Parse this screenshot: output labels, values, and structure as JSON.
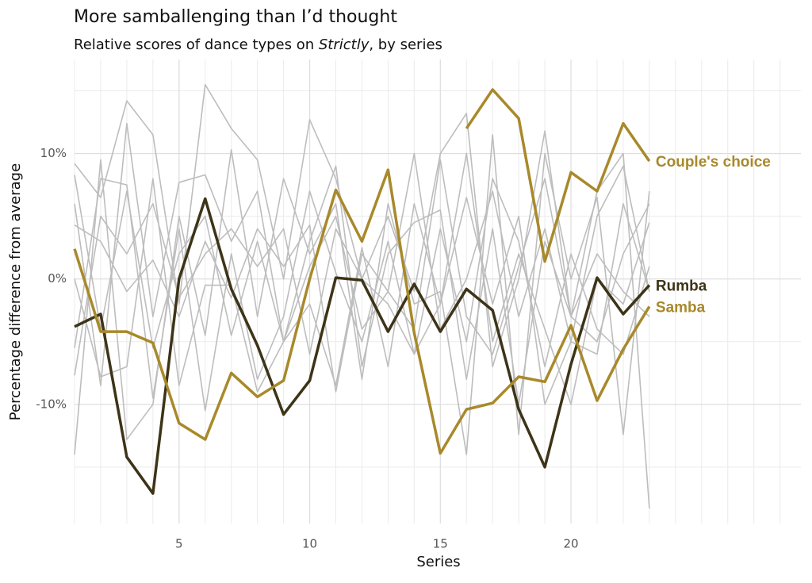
{
  "chart_data": {
    "type": "line",
    "title": "More samballenging than I’d thought",
    "subtitle": [
      "Relative scores of dance types on ",
      "Strictly",
      ", by series"
    ],
    "x_label": "Series",
    "y_label": "Percentage difference from average",
    "x": [
      1,
      2,
      3,
      4,
      5,
      6,
      7,
      8,
      9,
      10,
      11,
      12,
      13,
      14,
      15,
      16,
      17,
      18,
      19,
      20,
      21,
      22,
      23
    ],
    "xlim": [
      1,
      28.8
    ],
    "xticks": [
      5,
      10,
      15,
      20
    ],
    "ylim": [
      -19.5,
      17.5
    ],
    "yticks": [
      {
        "value": -10,
        "label": "-10%"
      },
      {
        "value": 0,
        "label": "0%"
      },
      {
        "value": 10,
        "label": "10%"
      }
    ],
    "grid": true,
    "series": [
      {
        "color": "#bdbdbd",
        "values": [
          9.2,
          6.5,
          14.2,
          11.5,
          -2,
          15.5,
          12,
          9.5,
          0,
          12.7,
          8,
          0,
          5,
          -1,
          10,
          13.2,
          -7,
          0,
          11.8,
          -3,
          7,
          10,
          -18.3
        ]
      },
      {
        "color": "#bdbdbd",
        "values": [
          -14,
          9.5,
          -12.8,
          -10,
          5,
          -4.5,
          10.3,
          -3,
          8,
          2,
          6,
          -8,
          6,
          -2,
          -1,
          -14,
          11.5,
          -12.4,
          10,
          0,
          6.5,
          -12.4,
          7
        ]
      },
      {
        "color": "#bdbdbd",
        "values": [
          4.3,
          3,
          -1,
          1.5,
          -3,
          3,
          -1.5,
          4,
          1,
          4.3,
          -9,
          2,
          -1,
          -4,
          9.5,
          -3,
          -6,
          1,
          8,
          -3,
          2,
          -1,
          -3
        ]
      },
      {
        "color": "#bdbdbd",
        "values": [
          -5.5,
          8,
          7.5,
          -9.5,
          4,
          -10.5,
          2,
          -8,
          -3,
          7,
          0.5,
          -5,
          3,
          -6,
          4,
          -5,
          8,
          3,
          -7,
          2,
          -4,
          -6,
          1
        ]
      },
      {
        "color": "#bdbdbd",
        "values": [
          6,
          -8.5,
          12.4,
          -3,
          7.7,
          8.3,
          3,
          7,
          -5,
          -2,
          -8.5,
          2.5,
          -7,
          6,
          -2,
          6.5,
          -2,
          5,
          -10,
          -5,
          5,
          9,
          -1
        ]
      },
      {
        "color": "#bdbdbd",
        "values": [
          0,
          -7.8,
          -7,
          8,
          -8.5,
          -0.5,
          -0.5,
          -9,
          -5,
          3,
          9,
          -7,
          2,
          4.5,
          5.5,
          -8,
          4,
          -10,
          3,
          -3,
          -5,
          2,
          6
        ]
      },
      {
        "color": "#bdbdbd",
        "values": [
          -7.7,
          5,
          2,
          6,
          -1.5,
          2,
          4,
          1,
          4,
          -6,
          4,
          0,
          -2,
          -6,
          -2,
          10,
          -5,
          2,
          -4,
          -10,
          0,
          -2,
          4.5
        ]
      },
      {
        "color": "#bdbdbd",
        "values": [
          8.3,
          -4,
          7,
          -5.5,
          2,
          5,
          -4.5,
          3,
          -5,
          1,
          5,
          -4,
          -1,
          10,
          -4,
          0,
          7,
          -3,
          4,
          -5,
          -6,
          6,
          -1
        ]
      },
      {
        "name": "Couple's choice",
        "color": "#a8892b",
        "values": [
          null,
          null,
          null,
          null,
          null,
          null,
          null,
          null,
          null,
          null,
          null,
          null,
          null,
          null,
          null,
          12.0,
          15.1,
          12.8,
          1.4,
          8.5,
          7.0,
          12.4,
          9.4
        ]
      },
      {
        "name": "Rumba",
        "color": "#3d3418",
        "values": [
          -3.8,
          -2.8,
          -14.2,
          -17.1,
          0,
          6.4,
          -0.8,
          -5.3,
          -10.8,
          -8.1,
          0.1,
          -0.1,
          -4.2,
          -0.4,
          -4.2,
          -0.8,
          -2.5,
          -10.4,
          -15.0,
          -6.8,
          0.1,
          -2.8,
          -0.5
        ]
      },
      {
        "name": "Samba",
        "color": "#a8892b",
        "values": [
          2.4,
          -4.2,
          -4.2,
          -5.1,
          -11.5,
          -12.8,
          -7.5,
          -9.4,
          -8.1,
          0,
          7.1,
          3.0,
          8.7,
          -4.3,
          -13.9,
          -10.4,
          -9.9,
          -7.8,
          -8.2,
          -3.7,
          -9.7,
          -5.6,
          -2.2
        ]
      }
    ]
  }
}
